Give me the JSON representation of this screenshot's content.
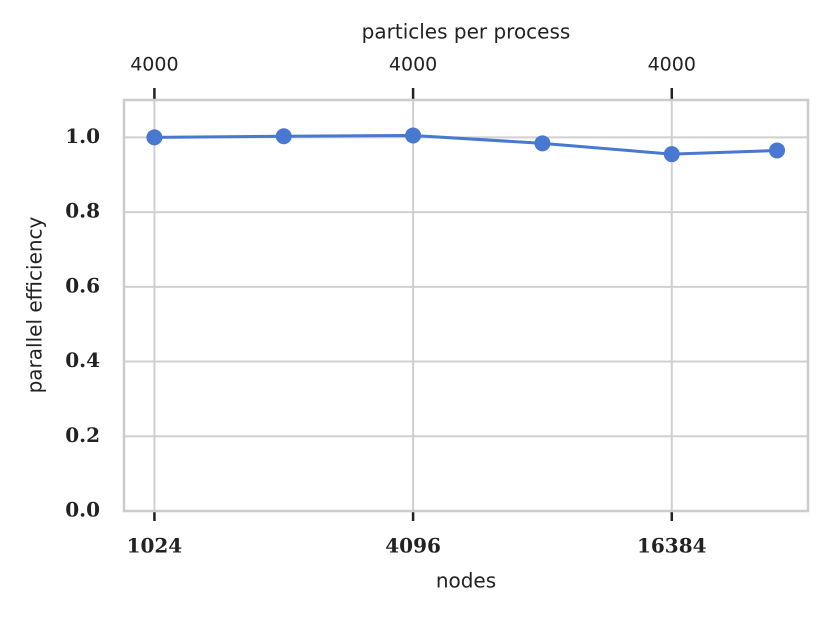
{
  "chart_data": {
    "type": "line",
    "xlabel": "nodes",
    "ylabel": "parallel efficiency",
    "x2label": "particles per process",
    "x": [
      1024,
      2048,
      4096,
      8192,
      16384,
      28800
    ],
    "series": [
      {
        "color": "#4878cf",
        "values": [
          1.0,
          1.003,
          1.005,
          0.984,
          0.955,
          0.965
        ]
      }
    ],
    "xscale": "log",
    "xlim": [
      870,
      34000
    ],
    "xticks": [
      1024,
      4096,
      16384
    ],
    "x2ticks": [
      {
        "value": 1024,
        "label": "4000"
      },
      {
        "value": 4096,
        "label": "4000"
      },
      {
        "value": 16384,
        "label": "4000"
      }
    ],
    "ylim": [
      0,
      1.1
    ],
    "yticks": [
      {
        "value": 0,
        "label": "0.0"
      },
      {
        "value": 0.2,
        "label": "0.2"
      },
      {
        "value": 0.4,
        "label": "0.4"
      },
      {
        "value": 0.6,
        "label": "0.6"
      },
      {
        "value": 0.8,
        "label": "0.8"
      },
      {
        "value": 1.0,
        "label": "1.0"
      }
    ],
    "grid": true
  }
}
